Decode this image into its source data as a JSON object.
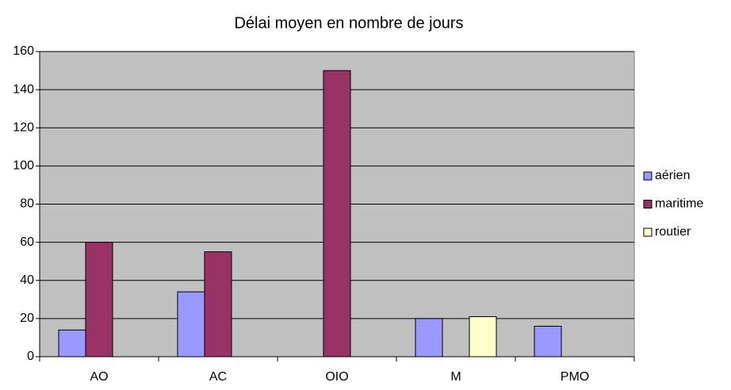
{
  "chart_data": {
    "type": "bar",
    "title": "Délai moyen en nombre de jours",
    "categories": [
      "AO",
      "AC",
      "OIO",
      "M",
      "PMO"
    ],
    "series": [
      {
        "name": "aérien",
        "color": "#9999ff",
        "values": [
          14,
          34,
          0,
          20,
          16
        ]
      },
      {
        "name": "maritime",
        "color": "#993366",
        "values": [
          60,
          55,
          150,
          null,
          null
        ]
      },
      {
        "name": "routier",
        "color": "#ffffcc",
        "values": [
          null,
          null,
          null,
          21,
          null
        ]
      }
    ],
    "ylim": [
      0,
      160
    ],
    "yticks": [
      0,
      20,
      40,
      60,
      80,
      100,
      120,
      140,
      160
    ],
    "grid": true,
    "legend": "right"
  }
}
